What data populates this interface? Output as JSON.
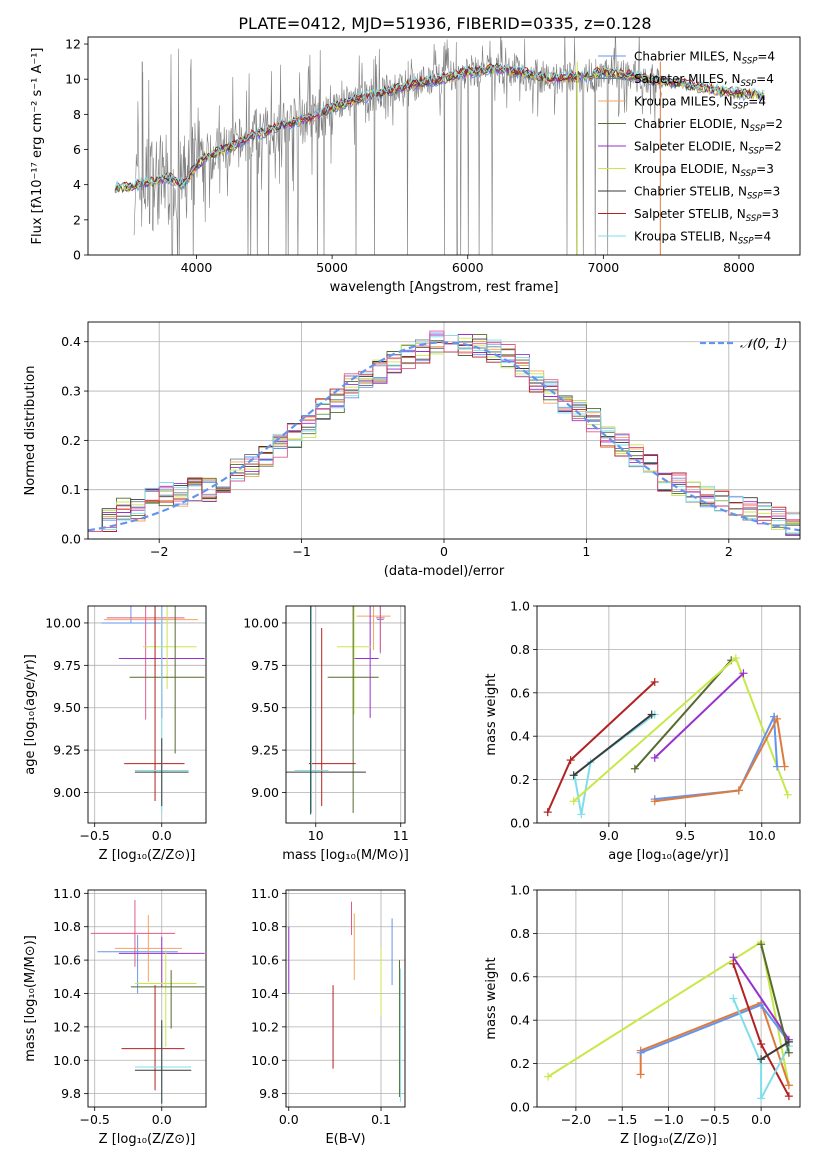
{
  "figure": {
    "title": "PLATE=0412, MJD=51936, FIBERID=0335, z=0.128"
  },
  "chart_data": [
    {
      "id": "spectrum",
      "type": "line",
      "xlabel": "wavelength [Angstrom, rest frame]",
      "ylabel": "Flux [fλ10⁻¹⁷ erg cm⁻² s⁻¹ A⁻¹]",
      "xlim": [
        3200,
        8450
      ],
      "ylim": [
        0,
        12.4
      ],
      "xticks": [
        4000,
        5000,
        6000,
        7000,
        8000
      ],
      "yticks": [
        0,
        2,
        4,
        6,
        8,
        10,
        12
      ],
      "grid": false,
      "legend_position": "top-right",
      "data_color": "#808080",
      "data_continuum": {
        "x": [
          3400,
          3500,
          3600,
          3700,
          3800,
          3900,
          4000,
          4100,
          4200,
          4300,
          4400,
          4500,
          4600,
          4700,
          4800,
          4900,
          5000,
          5200,
          5400,
          5600,
          5800,
          6000,
          6200,
          6400,
          6600,
          6800,
          7000,
          7200,
          7400,
          7600,
          7800,
          8000,
          8200
        ],
        "y": [
          3.9,
          3.8,
          4.1,
          4.2,
          4.4,
          4.0,
          5.1,
          5.7,
          6.0,
          6.3,
          6.8,
          7.0,
          7.3,
          7.5,
          7.7,
          8.0,
          8.4,
          8.9,
          9.3,
          9.7,
          10.0,
          10.4,
          10.6,
          10.4,
          10.0,
          10.1,
          10.4,
          10.2,
          9.9,
          9.7,
          9.4,
          9.2,
          9.0
        ]
      },
      "series": [
        {
          "name": "Chabrier MILES, N",
          "sub": "SSP",
          "suffix": "=4",
          "color": "#6495ED"
        },
        {
          "name": "Salpeter MILES, N",
          "sub": "SSP",
          "suffix": "=4",
          "color": "#708090"
        },
        {
          "name": "Kroupa MILES, N",
          "sub": "SSP",
          "suffix": "=4",
          "color": "#F4A460"
        },
        {
          "name": "Chabrier ELODIE, N",
          "sub": "SSP",
          "suffix": "=2",
          "color": "#556B2F"
        },
        {
          "name": "Salpeter ELODIE, N",
          "sub": "SSP",
          "suffix": "=2",
          "color": "#9932CC"
        },
        {
          "name": "Kroupa ELODIE, N",
          "sub": "SSP",
          "suffix": "=3",
          "color": "#C8E84A"
        },
        {
          "name": "Chabrier STELIB, N",
          "sub": "SSP",
          "suffix": "=3",
          "color": "#3A3A3A"
        },
        {
          "name": "Salpeter STELIB, N",
          "sub": "SSP",
          "suffix": "=3",
          "color": "#B22222"
        },
        {
          "name": "Kroupa STELIB, N",
          "sub": "SSP",
          "suffix": "=4",
          "color": "#80DEEA"
        }
      ]
    },
    {
      "id": "residuals",
      "type": "histogram",
      "xlabel": "(data-model)/error",
      "ylabel": "Normed distribution",
      "xlim": [
        -2.5,
        2.5
      ],
      "ylim": [
        0,
        0.44
      ],
      "xticks": [
        -2,
        -1,
        0,
        1,
        2
      ],
      "yticks": [
        0.0,
        0.1,
        0.2,
        0.3,
        0.4
      ],
      "grid": true,
      "legend_position": "top-right",
      "legend_label": "𝒩(0, 1)",
      "normal_curve_color": "#6495ED",
      "bin_width": 0.1,
      "bin_start": -2.5,
      "reference_hist": [
        0.04,
        0.04,
        0.06,
        0.06,
        0.08,
        0.09,
        0.09,
        0.1,
        0.1,
        0.11,
        0.14,
        0.15,
        0.17,
        0.19,
        0.21,
        0.23,
        0.26,
        0.28,
        0.31,
        0.33,
        0.34,
        0.36,
        0.37,
        0.38,
        0.4,
        0.4,
        0.39,
        0.39,
        0.38,
        0.37,
        0.35,
        0.32,
        0.3,
        0.28,
        0.26,
        0.24,
        0.21,
        0.19,
        0.17,
        0.15,
        0.12,
        0.11,
        0.1,
        0.09,
        0.08,
        0.07,
        0.06,
        0.05,
        0.04,
        0.03
      ]
    },
    {
      "id": "age-vs-Z",
      "type": "errorbar",
      "xlabel": "Z [log₁₀(Z/Z⊙)]",
      "ylabel": "age  [log₁₀(age/yr)]",
      "xlim": [
        -0.55,
        0.33
      ],
      "ylim": [
        8.82,
        10.1
      ],
      "xticks": [
        -0.5,
        0.0
      ],
      "yticks": [
        9.0,
        9.25,
        9.5,
        9.75,
        10.0
      ],
      "grid": true,
      "points": [
        {
          "x": -0.23,
          "xerr": [
            0.22,
            0.22
          ],
          "y": 10.0,
          "yerr": [
            0.0,
            0.1
          ],
          "color": "#6495ED"
        },
        {
          "x": -0.05,
          "xerr": [
            0.38,
            0.32
          ],
          "y": 10.02,
          "yerr": [
            0.3,
            0.1
          ],
          "color": "#F4A460"
        },
        {
          "x": -0.12,
          "xerr": [
            0.29,
            0.29
          ],
          "y": 10.03,
          "yerr": [
            0.6,
            0.13
          ],
          "color": "#E15C8C"
        },
        {
          "x": 0.0,
          "xerr": [
            0.32,
            0.32
          ],
          "y": 9.79,
          "yerr": [
            0.35,
            0.35
          ],
          "color": "#9932CC"
        },
        {
          "x": 0.04,
          "xerr": [
            0.18,
            0.22
          ],
          "y": 9.86,
          "yerr": [
            0.25,
            0.25
          ],
          "color": "#C8E84A"
        },
        {
          "x": 0.1,
          "xerr": [
            0.34,
            0.22
          ],
          "y": 9.68,
          "yerr": [
            0.45,
            0.45
          ],
          "color": "#556B2F"
        },
        {
          "x": -0.05,
          "xerr": [
            0.23,
            0.22
          ],
          "y": 9.17,
          "yerr": [
            0.22,
            1.0
          ],
          "color": "#B22222"
        },
        {
          "x": 0.0,
          "xerr": [
            0.2,
            0.2
          ],
          "y": 9.13,
          "yerr": [
            0.25,
            1.0
          ],
          "color": "#80DEEA"
        },
        {
          "x": 0.0,
          "xerr": [
            0.2,
            0.2
          ],
          "y": 9.12,
          "yerr": [
            0.2,
            0.2
          ],
          "color": "#3A3A3A"
        }
      ]
    },
    {
      "id": "age-vs-mass",
      "type": "errorbar",
      "xlabel": "mass [log₁₀(M/M⊙)]",
      "ylabel": "",
      "xlim": [
        9.65,
        11.05
      ],
      "ylim": [
        8.82,
        10.1
      ],
      "xticks": [
        10,
        11
      ],
      "yticks": [
        9.0,
        9.25,
        9.5,
        9.75,
        10.0
      ],
      "grid": true,
      "points": [
        {
          "x": 10.76,
          "xerr": [
            0.04,
            0.04
          ],
          "y": 10.02,
          "yerr": [
            0.2,
            0.1
          ],
          "color": "#6495ED"
        },
        {
          "x": 10.68,
          "xerr": [
            0.2,
            0.2
          ],
          "y": 10.04,
          "yerr": [
            0.2,
            0.1
          ],
          "color": "#F4A460"
        },
        {
          "x": 10.76,
          "xerr": [
            0.05,
            0.05
          ],
          "y": 10.03,
          "yerr": [
            0.2,
            0.1
          ],
          "color": "#E15C8C"
        },
        {
          "x": 10.64,
          "xerr": [
            0.2,
            0.1
          ],
          "y": 9.79,
          "yerr": [
            0.35,
            0.35
          ],
          "color": "#9932CC"
        },
        {
          "x": 10.45,
          "xerr": [
            0.2,
            0.2
          ],
          "y": 9.86,
          "yerr": [
            0.4,
            0.25
          ],
          "color": "#C8E84A"
        },
        {
          "x": 10.44,
          "xerr": [
            0.3,
            0.3
          ],
          "y": 9.68,
          "yerr": [
            0.8,
            0.45
          ],
          "color": "#556B2F"
        },
        {
          "x": 10.07,
          "xerr": [
            0.15,
            0.4
          ],
          "y": 9.17,
          "yerr": [
            0.25,
            0.8
          ],
          "color": "#B22222"
        },
        {
          "x": 9.95,
          "xerr": [
            0.2,
            0.2
          ],
          "y": 9.13,
          "yerr": [
            0.25,
            1.0
          ],
          "color": "#80DEEA"
        },
        {
          "x": 9.94,
          "xerr": [
            0.3,
            0.65
          ],
          "y": 9.12,
          "yerr": [
            0.25,
            1.0
          ],
          "color": "#3A3A3A"
        }
      ]
    },
    {
      "id": "weight-vs-age",
      "type": "line",
      "xlabel": "age  [log₁₀(age/yr)]",
      "ylabel": "mass weight",
      "xlim": [
        8.53,
        10.25
      ],
      "ylim": [
        0,
        1.0
      ],
      "xticks": [
        9.0,
        9.5,
        10.0
      ],
      "yticks": [
        0.0,
        0.2,
        0.4,
        0.6,
        0.8,
        1.0
      ],
      "grid": true,
      "series": [
        {
          "color": "#B22222",
          "x": [
            8.6,
            8.75,
            9.3
          ],
          "y": [
            0.05,
            0.29,
            0.65
          ]
        },
        {
          "color": "#80DEEA",
          "x": [
            8.78,
            8.82,
            8.88,
            9.3
          ],
          "y": [
            0.2,
            0.04,
            0.28,
            0.5
          ]
        },
        {
          "color": "#3A3A3A",
          "x": [
            8.77,
            9.28
          ],
          "y": [
            0.22,
            0.5
          ]
        },
        {
          "color": "#556B2F",
          "x": [
            9.17,
            9.8
          ],
          "y": [
            0.25,
            0.75
          ]
        },
        {
          "color": "#C8E84A",
          "x": [
            8.77,
            9.83,
            10.17
          ],
          "y": [
            0.1,
            0.76,
            0.13
          ]
        },
        {
          "color": "#9932CC",
          "x": [
            9.3,
            9.88
          ],
          "y": [
            0.3,
            0.69
          ]
        },
        {
          "color": "#6495ED",
          "x": [
            9.3,
            9.85,
            10.08,
            10.1
          ],
          "y": [
            0.11,
            0.15,
            0.49,
            0.26
          ]
        },
        {
          "color": "#E07A3C",
          "x": [
            9.3,
            9.85,
            10.1,
            10.15
          ],
          "y": [
            0.1,
            0.15,
            0.48,
            0.26
          ]
        }
      ]
    },
    {
      "id": "mass-vs-Z",
      "type": "errorbar",
      "xlabel": "Z [log₁₀(Z/Z⊙)]",
      "ylabel": "mass [log₁₀(M/M⊙)]",
      "xlim": [
        -0.55,
        0.33
      ],
      "ylim": [
        9.72,
        11.02
      ],
      "xticks": [
        -0.5,
        0.0
      ],
      "yticks": [
        9.8,
        10.0,
        10.2,
        10.4,
        10.6,
        10.8,
        11.0
      ],
      "grid": true,
      "points": [
        {
          "x": -0.18,
          "xerr": [
            0.3,
            0.3
          ],
          "y": 10.65,
          "yerr": [
            0.25,
            0.1
          ],
          "color": "#6495ED"
        },
        {
          "x": -0.1,
          "xerr": [
            0.25,
            0.25
          ],
          "y": 10.67,
          "yerr": [
            0.2,
            0.2
          ],
          "color": "#F4A460"
        },
        {
          "x": -0.2,
          "xerr": [
            0.33,
            0.3
          ],
          "y": 10.76,
          "yerr": [
            0.2,
            0.2
          ],
          "color": "#E15C8C"
        },
        {
          "x": 0.0,
          "xerr": [
            0.32,
            0.32
          ],
          "y": 10.64,
          "yerr": [
            0.2,
            0.1
          ],
          "color": "#9932CC"
        },
        {
          "x": 0.03,
          "xerr": [
            0.23,
            0.23
          ],
          "y": 10.46,
          "yerr": [
            0.38,
            0.2
          ],
          "color": "#C8E84A"
        },
        {
          "x": 0.07,
          "xerr": [
            0.3,
            0.25
          ],
          "y": 10.44,
          "yerr": [
            0.25,
            0.1
          ],
          "color": "#556B2F"
        },
        {
          "x": -0.05,
          "xerr": [
            0.25,
            0.22
          ],
          "y": 10.07,
          "yerr": [
            0.25,
            0.38
          ],
          "color": "#B22222"
        },
        {
          "x": 0.0,
          "xerr": [
            0.2,
            0.22
          ],
          "y": 9.96,
          "yerr": [
            0.22,
            0.25
          ],
          "color": "#80DEEA"
        },
        {
          "x": 0.0,
          "xerr": [
            0.2,
            0.22
          ],
          "y": 9.94,
          "yerr": [
            0.2,
            0.3
          ],
          "color": "#3A3A3A"
        }
      ]
    },
    {
      "id": "mass-vs-ebv",
      "type": "errorbar",
      "xlabel": "E(B-V)",
      "ylabel": "",
      "xlim": [
        -0.003,
        0.126
      ],
      "ylim": [
        9.72,
        11.02
      ],
      "xticks": [
        0.0,
        0.1
      ],
      "yticks": [
        9.8,
        10.0,
        10.2,
        10.4,
        10.6,
        10.8,
        11.0
      ],
      "grid": true,
      "points": [
        {
          "x": 0.0,
          "y": 10.6,
          "yerr": [
            0.2,
            0.2
          ],
          "color": "#9932CC"
        },
        {
          "x": 0.048,
          "y": 10.2,
          "yerr": [
            0.25,
            0.25
          ],
          "color": "#B22222"
        },
        {
          "x": 0.068,
          "y": 10.85,
          "yerr": [
            0.1,
            0.1
          ],
          "color": "#E15C8C"
        },
        {
          "x": 0.071,
          "y": 10.68,
          "yerr": [
            0.2,
            0.2
          ],
          "color": "#F4A460"
        },
        {
          "x": 0.1,
          "y": 10.47,
          "yerr": [
            0.2,
            0.2
          ],
          "color": "#C8E84A"
        },
        {
          "x": 0.112,
          "y": 10.65,
          "yerr": [
            0.2,
            0.2
          ],
          "color": "#6495ED"
        },
        {
          "x": 0.12,
          "y": 10.2,
          "yerr": [
            0.42,
            0.4
          ],
          "color": "#556B2F"
        },
        {
          "x": 0.121,
          "y": 10.15,
          "yerr": [
            0.4,
            0.4
          ],
          "color": "#80DEEA"
        }
      ]
    },
    {
      "id": "weight-vs-Z",
      "type": "line",
      "xlabel": "Z [log₁₀(Z/Z⊙)]",
      "ylabel": "mass weight",
      "xlim": [
        -2.42,
        0.42
      ],
      "ylim": [
        0,
        1.0
      ],
      "xticks": [
        -2.0,
        -1.5,
        -1.0,
        -0.5,
        0.0
      ],
      "yticks": [
        0.0,
        0.2,
        0.4,
        0.6,
        0.8,
        1.0
      ],
      "grid": true,
      "series": [
        {
          "color": "#C8E84A",
          "x": [
            -2.3,
            0.0,
            0.3
          ],
          "y": [
            0.14,
            0.76,
            0.1
          ]
        },
        {
          "color": "#E07A3C",
          "x": [
            -1.3,
            -1.3,
            0.0,
            0.3
          ],
          "y": [
            0.15,
            0.26,
            0.48,
            0.1
          ]
        },
        {
          "color": "#6495ED",
          "x": [
            -1.3,
            0.0,
            0.3
          ],
          "y": [
            0.25,
            0.47,
            0.3
          ]
        },
        {
          "color": "#9932CC",
          "x": [
            -0.3,
            0.3
          ],
          "y": [
            0.69,
            0.31
          ]
        },
        {
          "color": "#B22222",
          "x": [
            -0.3,
            0.0,
            0.3
          ],
          "y": [
            0.66,
            0.29,
            0.05
          ]
        },
        {
          "color": "#80DEEA",
          "x": [
            -0.3,
            0.0,
            0.0,
            0.3
          ],
          "y": [
            0.5,
            0.2,
            0.04,
            0.28
          ]
        },
        {
          "color": "#556B2F",
          "x": [
            0.0,
            0.3
          ],
          "y": [
            0.75,
            0.25
          ]
        },
        {
          "color": "#3A3A3A",
          "x": [
            0.0,
            0.3
          ],
          "y": [
            0.22,
            0.3
          ]
        }
      ]
    }
  ]
}
